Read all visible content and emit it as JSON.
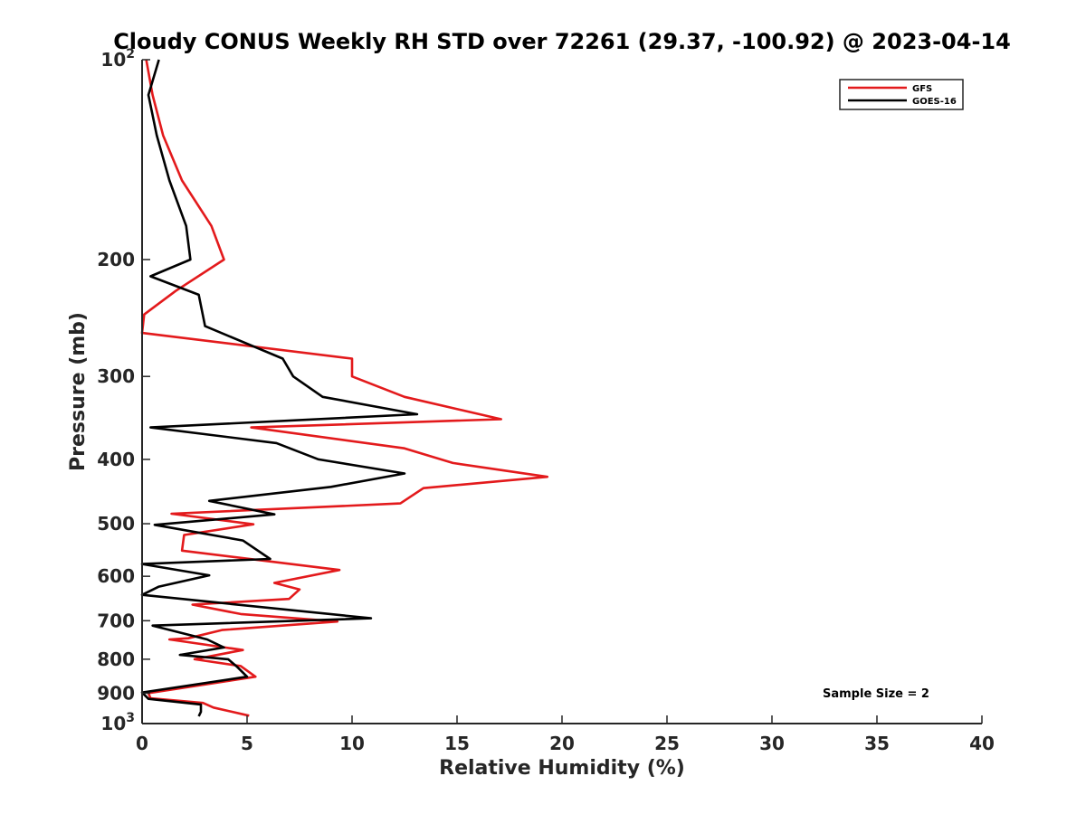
{
  "chart_data": {
    "type": "line",
    "title": "Cloudy CONUS Weekly RH STD over 72261 (29.37, -100.92) @ 2023-04-14",
    "xlabel": "Relative Humidity (%)",
    "ylabel": "Pressure (mb)",
    "xlim": [
      0,
      40
    ],
    "ylim": [
      100,
      1000
    ],
    "y_scale": "log",
    "y_reversed": true,
    "x_ticks": [
      0,
      5,
      10,
      15,
      20,
      25,
      30,
      35,
      40
    ],
    "x_tick_labels": [
      "0",
      "5",
      "10",
      "15",
      "20",
      "25",
      "30",
      "35",
      "40"
    ],
    "y_ticks": [
      100,
      200,
      300,
      400,
      500,
      600,
      700,
      800,
      900,
      1000
    ],
    "y_tick_labels": [
      {
        "base": "10",
        "exp": "2"
      },
      {
        "base": "200",
        "exp": ""
      },
      {
        "base": "300",
        "exp": ""
      },
      {
        "base": "400",
        "exp": ""
      },
      {
        "base": "500",
        "exp": ""
      },
      {
        "base": "600",
        "exp": ""
      },
      {
        "base": "700",
        "exp": ""
      },
      {
        "base": "800",
        "exp": ""
      },
      {
        "base": "900",
        "exp": ""
      },
      {
        "base": "10",
        "exp": "3"
      }
    ],
    "grid": false,
    "legend_position": "top-right",
    "annotation": "Sample Size = 2",
    "series": [
      {
        "name": "GFS",
        "color": "#e31a1c",
        "x": [
          0.2,
          0.5,
          1.0,
          1.9,
          3.3,
          3.9,
          1.6,
          0.1,
          0.0,
          10.0,
          10.0,
          12.5,
          17.1,
          5.2,
          12.5,
          14.8,
          19.3,
          13.4,
          12.3,
          1.4,
          5.3,
          2.0,
          1.9,
          9.4,
          6.3,
          7.5,
          7.0,
          2.4,
          4.7,
          9.3,
          3.8,
          2.2,
          1.3,
          4.8,
          2.5,
          4.7,
          5.4,
          0.3,
          0.4,
          2.9,
          3.4,
          5.1
        ],
        "y": [
          100,
          113,
          130,
          152,
          178,
          200,
          223,
          242,
          258,
          282,
          300,
          322,
          348,
          358,
          385,
          405,
          425,
          442,
          466,
          483,
          501,
          520,
          549,
          587,
          614,
          628,
          649,
          662,
          684,
          702,
          723,
          744,
          747,
          775,
          800,
          819,
          850,
          900,
          916,
          931,
          946,
          973
        ]
      },
      {
        "name": "GOES-16",
        "color": "#000000",
        "x": [
          0.8,
          0.3,
          0.7,
          1.3,
          2.1,
          2.3,
          0.4,
          2.7,
          3.0,
          6.7,
          7.2,
          8.6,
          13.1,
          0.4,
          6.4,
          8.4,
          12.5,
          9.0,
          3.2,
          6.3,
          0.6,
          4.8,
          6.1,
          0.0,
          3.2,
          0.8,
          0.0,
          10.9,
          0.5,
          3.1,
          3.9,
          1.8,
          4.1,
          4.5,
          5.0,
          0.0,
          0.3,
          2.8,
          2.8,
          2.7
        ],
        "y": [
          100,
          113,
          130,
          152,
          178,
          200,
          212,
          226,
          252,
          282,
          300,
          322,
          342,
          358,
          378,
          400,
          420,
          440,
          462,
          484,
          502,
          530,
          565,
          575,
          598,
          622,
          640,
          694,
          712,
          747,
          768,
          788,
          800,
          820,
          850,
          898,
          918,
          936,
          960,
          975
        ]
      }
    ]
  }
}
